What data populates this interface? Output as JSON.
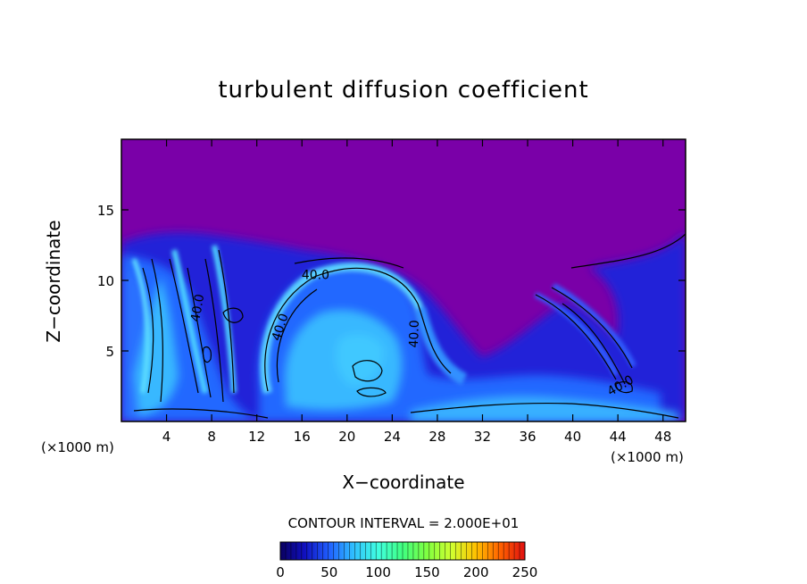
{
  "chart_data": {
    "type": "heatmap",
    "title": "turbulent diffusion coefficient",
    "xlabel": "X−coordinate",
    "ylabel": "Z−coordinate",
    "x_unit_left": "(×1000 m)",
    "x_unit_right": "(×1000 m)",
    "xlim": [
      0,
      50
    ],
    "ylim": [
      0,
      20
    ],
    "x_ticks": [
      4,
      8,
      12,
      16,
      20,
      24,
      28,
      32,
      36,
      40,
      44,
      48
    ],
    "y_ticks": [
      5,
      10,
      15
    ],
    "contour_interval": "CONTOUR INTERVAL = 2.000E+01",
    "contour_labels": [
      {
        "text": "40.0",
        "x": 17.2,
        "y": 10.1,
        "rotate": 0
      },
      {
        "text": "40.0",
        "x": 14.4,
        "y": 6.6,
        "rotate": -72
      },
      {
        "text": "40.0",
        "x": 7.1,
        "y": 8.0,
        "rotate": -80
      },
      {
        "text": "40.0",
        "x": 26.3,
        "y": 6.2,
        "rotate": -88
      },
      {
        "text": "40.0",
        "x": 44.4,
        "y": 2.3,
        "rotate": -30
      }
    ],
    "colorbar": {
      "min": 0,
      "max": 250,
      "ticks": [
        0,
        50,
        100,
        150,
        200,
        250
      ],
      "colors": [
        "#0a0060",
        "#1010c0",
        "#2060ff",
        "#30c0ff",
        "#40ffe0",
        "#40ff80",
        "#80ff40",
        "#d0ff30",
        "#ffc000",
        "#ff6000",
        "#e01010"
      ]
    },
    "background_value_color": "#7a00a8"
  }
}
